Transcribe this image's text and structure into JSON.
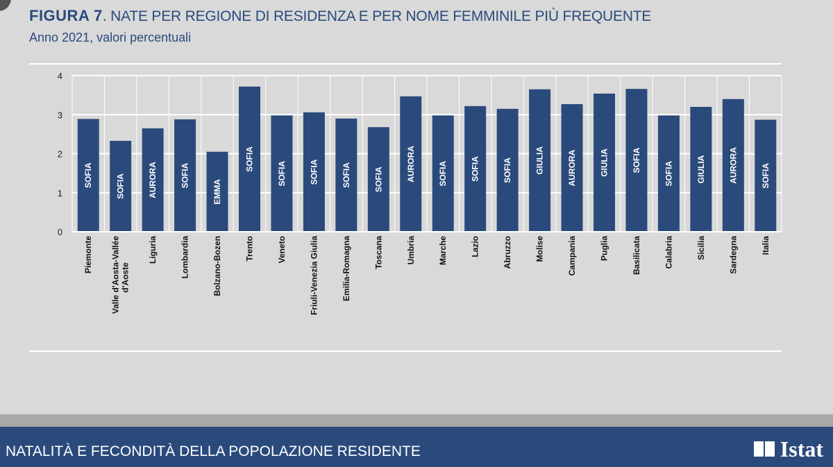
{
  "header": {
    "figure_label": "FIGURA 7",
    "title": ". NATE PER REGIONE DI RESIDENZA E PER NOME FEMMINILE PIÙ FREQUENTE",
    "subtitle": "Anno 2021, valori percentuali"
  },
  "footer": {
    "text": "NATALITÀ E FECONDITÀ DELLA POPOLAZIONE RESIDENTE",
    "logo": "Istat"
  },
  "chart_data": {
    "type": "bar",
    "title": "FIGURA 7. NATE PER REGIONE DI RESIDENZA E PER NOME FEMMINILE PIÙ FREQUENTE",
    "subtitle": "Anno 2021, valori percentuali",
    "categories": [
      "Piemonte",
      "Valle d'Aosta-Vallée d'Aoste",
      "Liguria",
      "Lombardia",
      "Bolzano-Bozen",
      "Trento",
      "Veneto",
      "Friuli-Venezia Giulia",
      "Emilia-Romagna",
      "Toscana",
      "Umbria",
      "Marche",
      "Lazio",
      "Abruzzo",
      "Molise",
      "Campania",
      "Puglia",
      "Basilicata",
      "Calabria",
      "Sicilia",
      "Sardegna",
      "Italia"
    ],
    "values": [
      2.89,
      2.33,
      2.65,
      2.88,
      2.05,
      3.72,
      2.98,
      3.06,
      2.9,
      2.68,
      3.47,
      2.98,
      3.22,
      3.15,
      3.65,
      3.27,
      3.54,
      3.66,
      2.98,
      3.2,
      3.4,
      2.87
    ],
    "bar_labels": [
      "SOFIA",
      "SOFIA",
      "AURORA",
      "SOFIA",
      "EMMA",
      "SOFIA",
      "SOFIA",
      "SOFIA",
      "SOFIA",
      "SOFIA",
      "AURORA",
      "SOFIA",
      "SOFIA",
      "SOFIA",
      "GIULIA",
      "AURORA",
      "GIULIA",
      "SOFIA",
      "SOFIA",
      "GIULIA",
      "AURORA",
      "SOFIA"
    ],
    "yticks": [
      "0",
      "1",
      "2",
      "3",
      "4"
    ],
    "ylim": [
      0,
      4
    ],
    "grid": true,
    "bar_color": "#2b4a7c"
  }
}
